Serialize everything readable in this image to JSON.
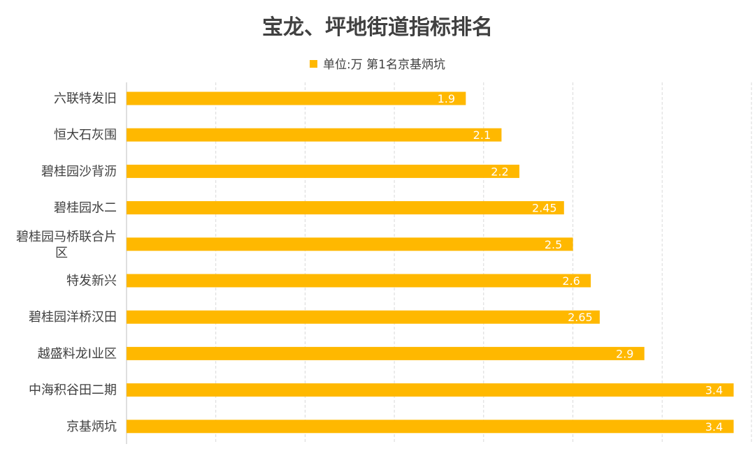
{
  "chart_data": {
    "type": "bar",
    "orientation": "horizontal",
    "title": "宝龙、坪地街道指标排名",
    "legend": "单位:万 第1名京基炳坑",
    "legend_position": "top",
    "categories": [
      "六联特发旧",
      "恒大石灰围",
      "碧桂园沙背沥",
      "碧桂园水二",
      "碧桂园马桥联合片区",
      "特发新兴",
      "碧桂园洋桥汉田",
      "越盛料龙I业区",
      "中海积谷田二期",
      "京基炳坑"
    ],
    "category_lines": [
      [
        "六联特发旧"
      ],
      [
        "恒大石灰围"
      ],
      [
        "碧桂园沙背沥"
      ],
      [
        "碧桂园水二"
      ],
      [
        "碧桂园马桥联合片",
        "区"
      ],
      [
        "特发新兴"
      ],
      [
        "碧桂园洋桥汉田"
      ],
      [
        "越盛料龙I业区"
      ],
      [
        "中海积谷田二期"
      ],
      [
        "京基炳坑"
      ]
    ],
    "values": [
      1.9,
      2.1,
      2.2,
      2.45,
      2.5,
      2.6,
      2.65,
      2.9,
      3.4,
      3.4
    ],
    "value_labels": [
      "1.9",
      "2.1",
      "2.2",
      "2.45",
      "2.5",
      "2.6",
      "2.65",
      "2.9",
      "3.4",
      "3.4"
    ],
    "xlim": [
      0,
      3.5
    ],
    "grid": true,
    "bar_color": "#ffb800"
  }
}
